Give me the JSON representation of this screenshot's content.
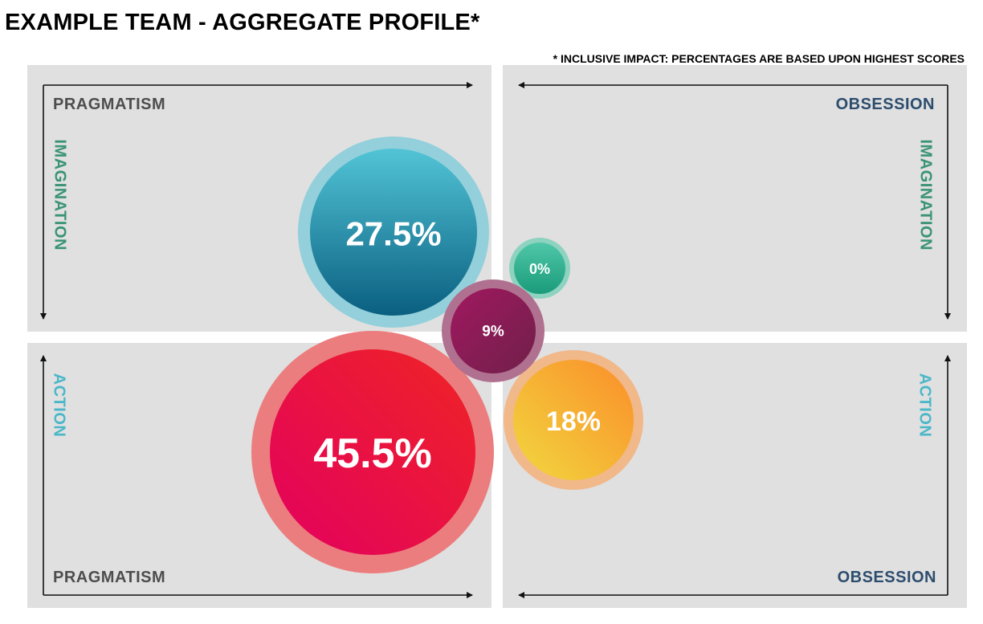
{
  "header": {
    "title": "EXAMPLE TEAM - AGGREGATE PROFILE*",
    "note": "* INCLUSIVE IMPACT: PERCENTAGES ARE BASED UPON HIGHEST SCORES"
  },
  "axes": {
    "top_left": "PRAGMATISM",
    "top_right": "OBSESSION",
    "bottom_left": "PRAGMATISM",
    "bottom_right": "OBSESSION",
    "left_upper": "IMAGINATION",
    "right_upper": "IMAGINATION",
    "left_lower": "ACTION",
    "right_lower": "ACTION"
  },
  "bubbles": [
    {
      "label": "27.5%",
      "value": 27.5,
      "quadrant": "pragmatism-imagination",
      "colors": [
        "#52c4d6",
        "#0a5f80"
      ],
      "ring": "#93d0db"
    },
    {
      "label": "0%",
      "value": 0,
      "quadrant": "obsession-imagination",
      "colors": [
        "#4fc7a8",
        "#1a9b7a"
      ],
      "ring": "#8ed2c0"
    },
    {
      "label": "9%",
      "value": 9,
      "quadrant": "center",
      "colors": [
        "#a01860",
        "#70204a"
      ],
      "ring": "#b0708f"
    },
    {
      "label": "45.5%",
      "value": 45.5,
      "quadrant": "pragmatism-action",
      "colors": [
        "#e3005f",
        "#ef2424"
      ],
      "ring": "#ec7d7e"
    },
    {
      "label": "18%",
      "value": 18,
      "quadrant": "obsession-action",
      "colors": [
        "#f1d83f",
        "#fb8d2a"
      ],
      "ring": "#f1b88a"
    }
  ],
  "colors": {
    "panel": "#e0e0e0",
    "pragmatism": "#4d4d4d",
    "obsession": "#2d4d6e",
    "imagination": "#3a9474",
    "action": "#4ab7c9"
  }
}
